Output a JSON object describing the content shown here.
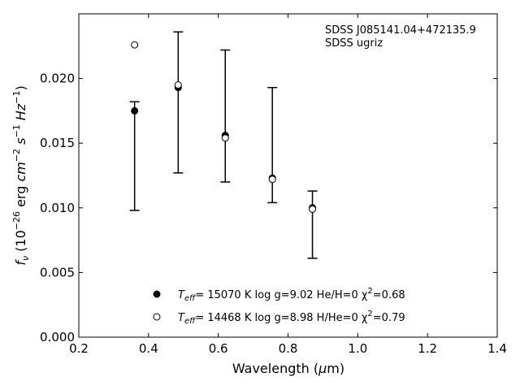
{
  "chart_data": {
    "type": "scatter",
    "xlabel": "Wavelength (μm)",
    "ylabel": "f_ν (10^-26 erg cm^-2 s^-1 Hz^-1)",
    "xlim": [
      0.2,
      1.4
    ],
    "ylim": [
      0.0,
      0.025
    ],
    "x_ticks": [
      0.2,
      0.4,
      0.6,
      0.8,
      1.0,
      1.2,
      1.4
    ],
    "x_tick_labels": [
      "0.2",
      "0.4",
      "0.6",
      "0.8",
      "1.0",
      "1.2",
      "1.4"
    ],
    "y_ticks": [
      0.0,
      0.005,
      0.01,
      0.015,
      0.02
    ],
    "y_tick_labels": [
      "0.000",
      "0.005",
      "0.010",
      "0.015",
      "0.020"
    ],
    "annotation_lines": [
      "SDSS J085141.04+472135.9",
      "SDSS ugriz"
    ],
    "observed": {
      "x": [
        0.36,
        0.485,
        0.62,
        0.755,
        0.87
      ],
      "y_low": [
        0.0098,
        0.0127,
        0.012,
        0.0104,
        0.0061
      ],
      "y_high": [
        0.0182,
        0.0236,
        0.0222,
        0.0193,
        0.0113
      ]
    },
    "series": [
      {
        "name": "T_eff= 15070 K  log g=9.02  He/H=0  χ²=0.68",
        "marker": "filled-circle",
        "x": [
          0.36,
          0.485,
          0.62,
          0.755,
          0.87
        ],
        "y": [
          0.0175,
          0.0193,
          0.0156,
          0.0123,
          0.01
        ]
      },
      {
        "name": "T_eff= 14468 K  log g=8.98  H/He=0  χ²=0.79",
        "marker": "open-circle",
        "x": [
          0.36,
          0.485,
          0.62,
          0.755,
          0.87
        ],
        "y": [
          0.0226,
          0.0195,
          0.0154,
          0.0122,
          0.0099
        ]
      }
    ],
    "legend_position": "bottom-center",
    "legend_entries": [
      {
        "t": "T",
        "sub": "eff",
        "rest": "= 15070 K  log g=9.02  He/H=0  χ",
        "sup": "2",
        "end": "=0.68"
      },
      {
        "t": "T",
        "sub": "eff",
        "rest": "= 14468 K  log g=8.98  H/He=0  χ",
        "sup": "2",
        "end": "=0.79"
      }
    ],
    "grid": false
  }
}
